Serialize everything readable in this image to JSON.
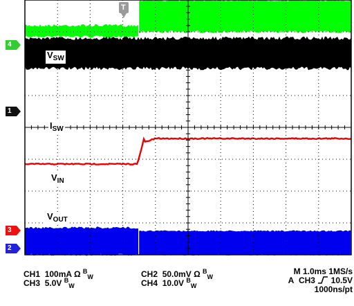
{
  "chart_data": {
    "type": "line",
    "title": "",
    "grid": true,
    "x_divisions": 10,
    "y_divisions": 8,
    "trigger_marker": "T",
    "channel_markers": [
      {
        "channel": "4",
        "color": "#33cc33"
      },
      {
        "channel": "1",
        "color": "#111111"
      },
      {
        "channel": "3",
        "color": "#ee1111"
      },
      {
        "channel": "2",
        "color": "#2222dd"
      }
    ],
    "series": [
      {
        "name": "V_SW",
        "channel": "4",
        "color": "#00ff00",
        "style": "noise-band",
        "note_levels_divisions": {
          "before_trigger": [
            0.8,
            1.15
          ],
          "after_trigger": [
            0.7,
            1.0
          ]
        }
      },
      {
        "name": "I_SW",
        "channel": "1",
        "color": "#000000",
        "style": "noise-band",
        "band_divisions": [
          1.2,
          2.15
        ]
      },
      {
        "name": "V_IN",
        "channel": "3",
        "color": "#ee0000",
        "style": "step",
        "x_step_div": 3.5,
        "level_before_div": 5.15,
        "level_after_div": 4.35
      },
      {
        "name": "V_OUT",
        "channel": "2",
        "color": "#0000ee",
        "style": "noise-band",
        "band_divisions_before": [
          7.15,
          8.0
        ],
        "band_divisions_after": [
          7.25,
          8.0
        ]
      }
    ],
    "labels": {
      "vsw": {
        "main": "V",
        "sub": "SW"
      },
      "isw": {
        "main": "I",
        "sub": "SW"
      },
      "vin": {
        "main": "V",
        "sub": "IN"
      },
      "vout": {
        "main": "V",
        "sub": "OUT"
      }
    }
  },
  "readout": {
    "ch1": {
      "name": "CH1",
      "scale": "100mA",
      "imp": "Ω",
      "bw": "B",
      "bwsub": "W"
    },
    "ch3": {
      "name": "CH3",
      "scale": "5.0V",
      "bw": "B",
      "bwsub": "W"
    },
    "ch2": {
      "name": "CH2",
      "scale": "50.0mV",
      "imp": "Ω",
      "bw": "B",
      "bwsub": "W"
    },
    "ch4": {
      "name": "CH4",
      "scale": "10.0V",
      "bw": "B",
      "bwsub": "W"
    },
    "timebase": "M 1.0ms 1MS/s",
    "trigger": {
      "mode": "A",
      "channel": "CH3",
      "slope_icon": "rising-edge-icon",
      "level": "10.5V"
    },
    "resolution": "1000ns/pt"
  }
}
